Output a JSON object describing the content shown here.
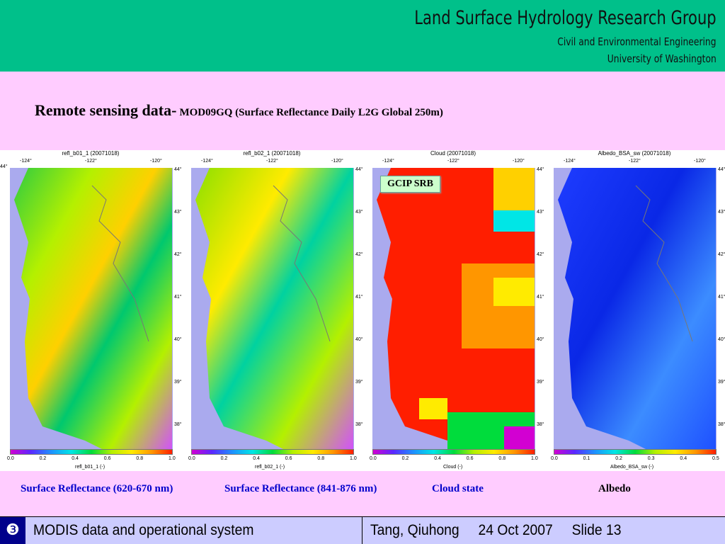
{
  "header": {
    "title": "Land Surface Hydrology Research Group",
    "dept": "Civil and Environmental Engineering",
    "university": "University of Washington",
    "color": "#00c08a"
  },
  "slide_title": {
    "main": "Remote sensing data-",
    "sub": "MOD09GQ (Surface Reflectance Daily L2G Global 250m)"
  },
  "panels": [
    {
      "title": "refl_b01_1 (20071018)",
      "var": "refl_b01_1 (-)",
      "ticks": [
        "0.0",
        "0.2",
        "0.4",
        "0.6",
        "0.8",
        "1.0"
      ]
    },
    {
      "title": "refl_b02_1 (20071018)",
      "var": "refl_b02_1 (-)",
      "ticks": [
        "0.0",
        "0.2",
        "0.4",
        "0.6",
        "0.8",
        "1.0"
      ]
    },
    {
      "title": "Cloud (20071018)",
      "var": "Cloud (-)",
      "ticks": [
        "0.0",
        "0.2",
        "0.4",
        "0.6",
        "0.8",
        "1.0"
      ]
    },
    {
      "title": "Albedo_BSA_sw (20071018)",
      "var": "Albedo_BSA_sw (-)",
      "ticks": [
        "0.0",
        "0.1",
        "0.2",
        "0.3",
        "0.4",
        "0.5"
      ]
    }
  ],
  "lon_ticks": [
    "-124°",
    "-122°",
    "-120°"
  ],
  "lat_ticks": [
    "44°",
    "43°",
    "42°",
    "41°",
    "40°",
    "39°",
    "38°"
  ],
  "gcip_label": "GCIP SRB",
  "captions": [
    {
      "text": "Surface Reflectance (620-670 nm)",
      "color": "#0000cc"
    },
    {
      "text": "Surface Reflectance (841-876 nm)",
      "color": "#0000cc"
    },
    {
      "text": "Cloud state",
      "color": "#0000cc"
    },
    {
      "text": "Albedo",
      "color": "#000000"
    }
  ],
  "footer": {
    "number": "❸",
    "topic": "MODIS data and operational system",
    "author": "Tang, Qiuhong",
    "date": "24 Oct 2007",
    "slide": "Slide 13"
  }
}
